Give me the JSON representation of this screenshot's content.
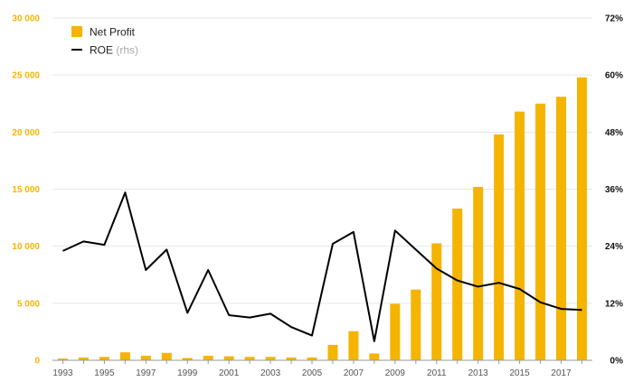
{
  "colors": {
    "bar": "#f5b400",
    "line": "#000000",
    "left_axis_text": "#f5b400",
    "grid": "#e6e6e6"
  },
  "chart_data": {
    "type": "bar+line",
    "title": "",
    "categories": [
      "1993",
      "1994",
      "1995",
      "1996",
      "1997",
      "1998",
      "1999",
      "2000",
      "2001",
      "2002",
      "2003",
      "2004",
      "2005",
      "2006",
      "2007",
      "2008",
      "2009",
      "2010",
      "2011",
      "2012",
      "2013",
      "2014",
      "2015",
      "2016",
      "2017",
      "2018"
    ],
    "x_tick_labels": [
      "1993",
      "1995",
      "1997",
      "1999",
      "2001",
      "2003",
      "2005",
      "2007",
      "2009",
      "2011",
      "2013",
      "2015",
      "2017"
    ],
    "series": [
      {
        "name": "Net Profit",
        "type": "bar",
        "axis": "left",
        "values": [
          150,
          250,
          300,
          700,
          400,
          650,
          200,
          400,
          350,
          300,
          300,
          250,
          250,
          1350,
          2550,
          600,
          4950,
          6200,
          10250,
          13300,
          15200,
          19800,
          21800,
          22500,
          23100,
          24800
        ]
      },
      {
        "name": "ROE",
        "name_suffix": "(rhs)",
        "type": "line",
        "axis": "right",
        "values": [
          23.0,
          25.0,
          24.3,
          35.3,
          19.0,
          23.3,
          10.0,
          19.0,
          9.5,
          9.0,
          9.8,
          7.0,
          5.2,
          24.5,
          27.0,
          4.0,
          27.3,
          23.3,
          19.3,
          16.8,
          15.5,
          16.3,
          15.0,
          12.2,
          10.8,
          10.6
        ]
      }
    ],
    "y_left": {
      "min": 0,
      "max": 30000,
      "ticks": [
        "0",
        "5 000",
        "10 000",
        "15 000",
        "20 000",
        "25 000",
        "30 000"
      ]
    },
    "y_right": {
      "min": 0,
      "max": 72,
      "ticks": [
        "0%",
        "12%",
        "24%",
        "36%",
        "48%",
        "60%",
        "72%"
      ]
    },
    "grid": true,
    "legend": "top-left"
  }
}
